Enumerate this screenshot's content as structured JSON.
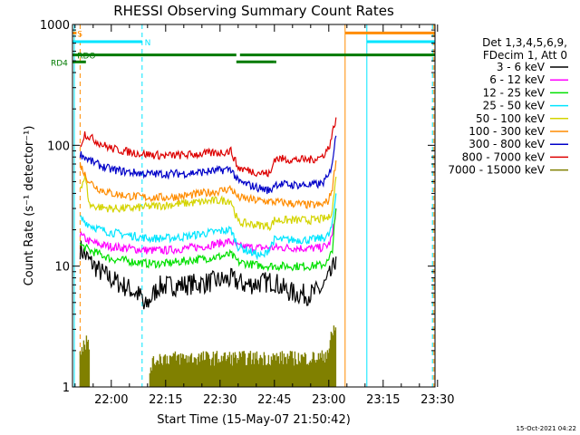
{
  "chart_data": {
    "type": "line",
    "title": "RHESSI Observing Summary Count Rates",
    "xlabel": "Start Time (15-May-07 21:50:42)",
    "ylabel": "Count Rate (s⁻¹ detector⁻¹)",
    "ylog": true,
    "ylim": [
      1,
      1000
    ],
    "xlim_minutes": [
      -10.7,
      89.3
    ],
    "x_ticks": [
      "22:00",
      "22:15",
      "22:30",
      "22:45",
      "23:00",
      "23:15",
      "23:30"
    ],
    "x_tick_minutes": [
      0,
      15,
      30,
      45,
      60,
      75,
      90
    ],
    "y_ticks": [
      "1",
      "10",
      "100",
      "1000"
    ],
    "y_tick_values": [
      1,
      10,
      100,
      1000
    ],
    "legend": {
      "placement": "right",
      "header": [
        "Det 1,3,4,5,6,9,",
        "FDecim 1, Att 0"
      ]
    },
    "flags": [
      {
        "label": "S",
        "color": "#ff8c00",
        "y": 850
      },
      {
        "label": "N",
        "color": "#00e5ff",
        "y": 720
      },
      {
        "label": "RDO",
        "color": "#007a00",
        "y": 560
      },
      {
        "label": "RD4",
        "color": "#007a00",
        "y": 490
      }
    ],
    "footer": "15-Oct-2021 04:22",
    "series": [
      {
        "name": "3 - 6 keV",
        "color": "#000000",
        "x": [
          -8.6,
          -6,
          -3,
          0,
          5,
          8.5,
          9,
          13,
          20,
          25,
          30,
          33,
          37,
          40,
          45,
          47,
          50,
          54,
          56,
          58,
          59.5,
          61,
          62
        ],
        "y": [
          14,
          11,
          9,
          7.8,
          6.5,
          5.5,
          4.4,
          6.8,
          7.0,
          7.2,
          7.6,
          7.8,
          7.0,
          7.2,
          7.5,
          6.6,
          6.0,
          5.8,
          6.0,
          6.5,
          7.5,
          9.0,
          12.0
        ]
      },
      {
        "name": "6 - 12 keV",
        "color": "#ff00ff",
        "x": [
          -8.6,
          -6,
          -3,
          0,
          5,
          10,
          15,
          20,
          25,
          30,
          33,
          35,
          40,
          45,
          50,
          55,
          58,
          60,
          61,
          62
        ],
        "y": [
          18,
          16,
          15,
          14.5,
          14,
          13.5,
          13.5,
          14,
          14.5,
          15.5,
          16,
          14.5,
          14.2,
          14.2,
          14.2,
          14,
          14.2,
          15,
          18,
          30
        ]
      },
      {
        "name": "12 - 25 keV",
        "color": "#00e000",
        "x": [
          -8.6,
          -6,
          -3,
          0,
          5,
          10,
          15,
          20,
          25,
          30,
          33,
          35,
          40,
          45,
          50,
          55,
          58,
          60,
          61,
          62
        ],
        "y": [
          15,
          13.5,
          12.5,
          11.5,
          11,
          10.5,
          10.5,
          11,
          11.5,
          12,
          12.5,
          10.8,
          10.2,
          10,
          10,
          10,
          10.2,
          11,
          14,
          30
        ]
      },
      {
        "name": "25 - 50 keV",
        "color": "#00e5ff",
        "x": [
          -8.6,
          -6,
          -3,
          0,
          5,
          10,
          15,
          20,
          25,
          30,
          33,
          35,
          40,
          42,
          45,
          50,
          55,
          58,
          60,
          61,
          62
        ],
        "y": [
          25,
          22,
          20,
          19,
          18,
          17,
          17,
          17.5,
          18.5,
          19.5,
          20,
          14.5,
          12.5,
          12,
          16.5,
          16.5,
          16.5,
          17,
          18,
          22,
          40
        ]
      },
      {
        "name": "50 - 100 keV",
        "color": "#d4d400",
        "x": [
          -8.6,
          -7.2,
          -6,
          -4,
          -2,
          0,
          5,
          10,
          15,
          20,
          25,
          30,
          33,
          35,
          40,
          44,
          45,
          50,
          55,
          58,
          60,
          61,
          62
        ],
        "y": [
          45,
          55,
          32,
          31,
          30.5,
          30,
          30,
          31,
          32,
          33,
          34,
          35,
          35,
          23,
          22,
          21.5,
          24,
          24,
          24,
          24.5,
          25,
          30,
          55
        ]
      },
      {
        "name": "100 - 300 keV",
        "color": "#ff8c00",
        "x": [
          -8.6,
          -7,
          -5,
          -3,
          0,
          5,
          10,
          15,
          20,
          25,
          30,
          33,
          35,
          40,
          45,
          50,
          55,
          58,
          60,
          61,
          62
        ],
        "y": [
          70,
          55,
          47,
          43,
          40,
          38,
          37,
          37,
          38,
          40,
          42,
          44,
          37,
          35,
          34,
          33,
          32,
          32,
          35,
          45,
          75
        ]
      },
      {
        "name": "300 - 800 keV",
        "color": "#0000c8",
        "x": [
          -8.6,
          -6,
          -4,
          -2,
          0,
          5,
          10,
          15,
          20,
          25,
          30,
          33,
          35,
          40,
          44,
          45,
          50,
          55,
          58,
          60,
          61,
          62
        ],
        "y": [
          85,
          75,
          70,
          66,
          63,
          60,
          58,
          58,
          58.5,
          60,
          62,
          64,
          50,
          45,
          42,
          48,
          47,
          47,
          48,
          55,
          75,
          120
        ]
      },
      {
        "name": "800 - 7000 keV",
        "color": "#dd0000",
        "x": [
          -8.6,
          -7.3,
          -5,
          -2,
          0,
          5,
          10,
          15,
          20,
          25,
          30,
          33,
          35,
          40,
          44,
          45,
          50,
          55,
          58,
          60,
          61,
          62
        ],
        "y": [
          100,
          125,
          112,
          100,
          94,
          88,
          84,
          82,
          83,
          85,
          87,
          90,
          65,
          60,
          58,
          78,
          76,
          76,
          80,
          95,
          125,
          170
        ]
      },
      {
        "name": "7000 - 15000 keV",
        "color": "#808000",
        "x": [
          -8.6,
          -7,
          -6,
          8,
          10,
          11,
          13,
          20,
          25,
          30,
          35,
          40,
          45,
          50,
          55,
          58,
          60,
          61,
          62
        ],
        "y": [
          2.5,
          3.0,
          2.3,
          1.0,
          1.0,
          1.7,
          2.0,
          2.0,
          2.0,
          2.0,
          2.0,
          2.0,
          2.0,
          2.0,
          2.0,
          2.0,
          2.4,
          3.2,
          4.2
        ]
      }
    ]
  }
}
